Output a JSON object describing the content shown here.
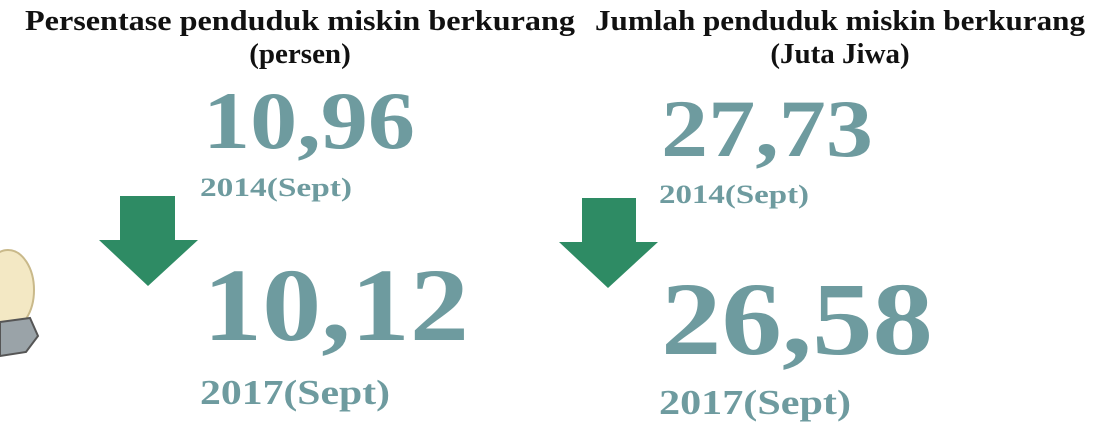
{
  "panels": [
    {
      "title": "Persentase penduduk miskin berkurang",
      "subtitle": "(persen)",
      "from": {
        "value": "10,96",
        "label": "2014(Sept)"
      },
      "to": {
        "value": "10,12",
        "label": "2017(Sept)"
      }
    },
    {
      "title": "Jumlah penduduk miskin berkurang",
      "subtitle": "(Juta Jiwa)",
      "from": {
        "value": "27,73",
        "label": "2014(Sept)"
      },
      "to": {
        "value": "26,58",
        "label": "2017(Sept)"
      }
    }
  ]
}
